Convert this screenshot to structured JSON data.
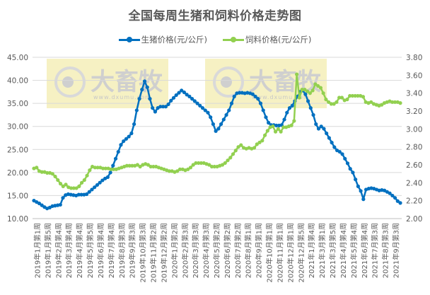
{
  "chart_data": {
    "type": "line",
    "title": "全国每周生猪和饲料价格走势图",
    "xlabel": "",
    "ylabel": "",
    "legend_position": "top",
    "grid": true,
    "y_left": {
      "min": 10,
      "max": 45,
      "step": 5,
      "ticks": [
        "10.00",
        "15.00",
        "20.00",
        "25.00",
        "30.00",
        "35.00",
        "40.00",
        "45.00"
      ]
    },
    "y_right": {
      "min": 2.0,
      "max": 3.8,
      "step": 0.2,
      "ticks": [
        "2.00",
        "2.20",
        "2.40",
        "2.60",
        "2.80",
        "3.00",
        "3.20",
        "3.40",
        "3.60",
        "3.80"
      ]
    },
    "x_tick_labels": [
      "2019年1月第1周",
      "2019年1月第5周",
      "2019年2月第4周",
      "2019年3月第4周",
      "2019年4月第4周",
      "2019年5月第5周",
      "2019年6月第4周",
      "2019年7月第4周",
      "2019年8月第3周",
      "2019年9月第3周",
      "2019年10月第3周",
      "2019年11月第2周",
      "2019年12月第2周",
      "2020年1月第2周",
      "2020年2月第3周",
      "2020年3月第3周",
      "2020年4月第3周",
      "2020年5月第2周",
      "2020年6月第2周",
      "2020年7月第2周",
      "2020年8月第1周",
      "2020年9月第1周",
      "2020年10月第1周",
      "2020年11月第1周",
      "2020年12月第1周",
      "2020年12月第5周",
      "2021年1月第4周",
      "2021年3月第1周",
      "2021年3月第5周",
      "2021年4月第4周",
      "2021年5月第4周",
      "2021年6月第4周",
      "2021年7月第3周",
      "2021年8月第3周",
      "2021年9月第3周"
    ],
    "series": [
      {
        "name": "生猪价格(元/公斤)",
        "axis": "left",
        "color": "#0070C0",
        "values": [
          13.9,
          13.6,
          13.3,
          12.9,
          12.5,
          12.2,
          12.4,
          12.7,
          12.8,
          12.9,
          13.0,
          14.5,
          15.1,
          15.3,
          15.2,
          15.1,
          15.0,
          15.2,
          15.2,
          15.2,
          15.3,
          15.8,
          16.3,
          16.8,
          17.3,
          17.8,
          18.3,
          18.7,
          19.0,
          20.0,
          21.5,
          23.0,
          24.5,
          26.0,
          26.8,
          27.3,
          27.8,
          28.5,
          30.5,
          33.5,
          36.0,
          38.0,
          39.8,
          38.5,
          36.0,
          34.0,
          33.2,
          34.0,
          34.3,
          34.3,
          34.3,
          34.8,
          35.6,
          36.2,
          36.8,
          37.3,
          37.8,
          37.4,
          36.9,
          36.5,
          36.0,
          35.5,
          35.0,
          34.5,
          34.0,
          33.5,
          33.0,
          32.0,
          30.5,
          29.0,
          29.5,
          30.5,
          31.5,
          32.5,
          33.5,
          35.0,
          36.5,
          37.2,
          37.3,
          37.3,
          37.2,
          37.3,
          37.2,
          37.0,
          36.5,
          36.0,
          35.0,
          33.5,
          32.0,
          30.8,
          30.3,
          30.3,
          30.2,
          30.2,
          30.3,
          31.5,
          33.0,
          34.0,
          34.5,
          35.5,
          36.5,
          37.5,
          37.8,
          37.0,
          35.5,
          34.0,
          32.5,
          30.5,
          29.5,
          30.0,
          29.5,
          28.5,
          27.5,
          26.5,
          25.5,
          24.8,
          24.5,
          24.0,
          23.0,
          22.0,
          20.8,
          20.0,
          18.5,
          17.0,
          16.0,
          14.2,
          16.3,
          16.5,
          16.6,
          16.5,
          16.3,
          16.1,
          16.2,
          16.1,
          15.8,
          15.5,
          15.0,
          14.5,
          13.8,
          13.4
        ]
      },
      {
        "name": "饲料价格(元/公斤)",
        "axis": "right",
        "color": "#92D050",
        "values": [
          2.56,
          2.57,
          2.53,
          2.52,
          2.52,
          2.51,
          2.51,
          2.5,
          2.47,
          2.43,
          2.39,
          2.36,
          2.38,
          2.35,
          2.34,
          2.34,
          2.34,
          2.36,
          2.4,
          2.43,
          2.48,
          2.54,
          2.58,
          2.57,
          2.57,
          2.57,
          2.56,
          2.56,
          2.56,
          2.55,
          2.55,
          2.55,
          2.56,
          2.57,
          2.58,
          2.59,
          2.59,
          2.59,
          2.59,
          2.6,
          2.58,
          2.6,
          2.61,
          2.6,
          2.58,
          2.58,
          2.58,
          2.57,
          2.56,
          2.55,
          2.54,
          2.53,
          2.53,
          2.52,
          2.53,
          2.55,
          2.55,
          2.54,
          2.55,
          2.57,
          2.6,
          2.62,
          2.62,
          2.62,
          2.62,
          2.61,
          2.6,
          2.58,
          2.58,
          2.58,
          2.59,
          2.6,
          2.62,
          2.65,
          2.68,
          2.72,
          2.76,
          2.8,
          2.82,
          2.79,
          2.78,
          2.79,
          2.78,
          2.79,
          2.83,
          2.85,
          2.87,
          2.93,
          2.98,
          3.02,
          3.03,
          2.97,
          3.0,
          2.97,
          3.02,
          3.02,
          3.03,
          3.04,
          3.09,
          3.61,
          3.35,
          3.44,
          3.44,
          3.42,
          3.4,
          3.43,
          3.5,
          3.48,
          3.46,
          3.4,
          3.33,
          3.3,
          3.28,
          3.28,
          3.3,
          3.35,
          3.35,
          3.32,
          3.33,
          3.37,
          3.37,
          3.37,
          3.37,
          3.37,
          3.36,
          3.3,
          3.29,
          3.3,
          3.28,
          3.27,
          3.26,
          3.27,
          3.29,
          3.3,
          3.31,
          3.3,
          3.3,
          3.3,
          3.29
        ]
      }
    ]
  },
  "legend": {
    "items": [
      {
        "label": "生猪价格(元/公斤)",
        "color": "#0070C0"
      },
      {
        "label": "饲料价格(元/公斤)",
        "color": "#92D050"
      }
    ]
  },
  "watermark": {
    "text": "大畜牧",
    "url_text": "www.dxumu.com"
  }
}
